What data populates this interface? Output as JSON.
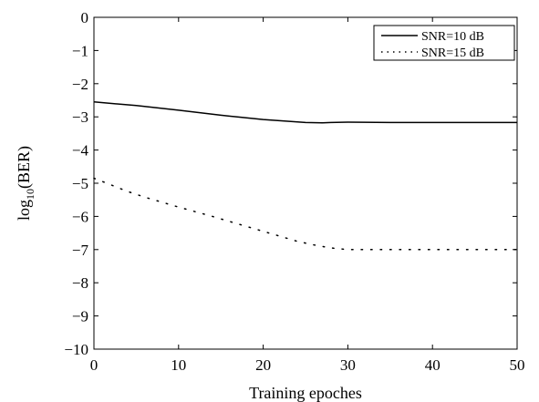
{
  "chart_data": {
    "type": "line",
    "title": "",
    "xlabel": "Training epoches",
    "ylabel_prefix": "log",
    "ylabel_sub": "10",
    "ylabel_suffix": "(BER)",
    "xlim": [
      0,
      50
    ],
    "ylim": [
      -10,
      0
    ],
    "xticks": [
      0,
      10,
      20,
      30,
      40,
      50
    ],
    "yticks": [
      0,
      -1,
      -2,
      -3,
      -4,
      -5,
      -6,
      -7,
      -8,
      -9,
      -10
    ],
    "grid": false,
    "legend_position": "top-right",
    "series": [
      {
        "name": "SNR=10 dB",
        "style": "solid",
        "color": "#000000",
        "x": [
          0,
          5,
          10,
          15,
          20,
          25,
          27,
          28,
          30,
          35,
          40,
          45,
          50
        ],
        "y": [
          -2.55,
          -2.66,
          -2.8,
          -2.95,
          -3.08,
          -3.17,
          -3.18,
          -3.17,
          -3.16,
          -3.17,
          -3.17,
          -3.17,
          -3.17
        ]
      },
      {
        "name": "SNR=15 dB",
        "style": "dotted",
        "color": "#000000",
        "x": [
          0,
          2,
          4,
          6,
          8,
          10,
          12,
          14,
          16,
          18,
          20,
          22,
          24,
          26,
          28,
          30,
          35,
          40,
          45,
          50
        ],
        "y": [
          -4.85,
          -5.05,
          -5.25,
          -5.42,
          -5.57,
          -5.72,
          -5.86,
          -6.0,
          -6.15,
          -6.3,
          -6.45,
          -6.6,
          -6.75,
          -6.86,
          -6.95,
          -7.0,
          -7.0,
          -7.0,
          -7.0,
          -7.0
        ]
      }
    ]
  }
}
